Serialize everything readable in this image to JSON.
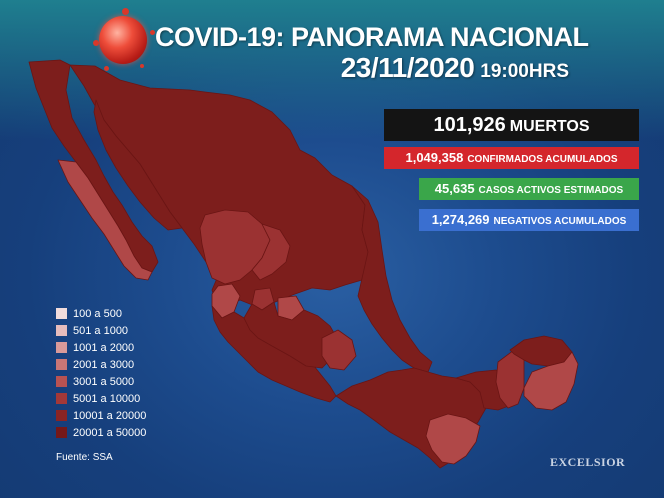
{
  "header": {
    "title": "COVID-19: PANORAMA NACIONAL",
    "date": "23/11/2020",
    "time": "19:00HRS"
  },
  "stats": {
    "deaths": {
      "value": "101,926",
      "label": "MUERTOS",
      "color": "#141414"
    },
    "confirmed": {
      "value": "1,049,358",
      "label": "CONFIRMADOS ACUMULADOS",
      "color": "#d4262c"
    },
    "active": {
      "value": "45,635",
      "label": "CASOS ACTIVOS ESTIMADOS",
      "color": "#3aa64a"
    },
    "negative": {
      "value": "1,274,269",
      "label": "NEGATIVOS ACUMULADOS",
      "color": "#3a6fd0"
    }
  },
  "legend": [
    {
      "label": "100 a 500",
      "color": "#f1dcdc"
    },
    {
      "label": "501 a 1000",
      "color": "#e6bcbc"
    },
    {
      "label": "1001 a 2000",
      "color": "#d99a9a"
    },
    {
      "label": "2001 a 3000",
      "color": "#c97676"
    },
    {
      "label": "3001 a 5000",
      "color": "#b85252"
    },
    {
      "label": "5001 a 10000",
      "color": "#a33838"
    },
    {
      "label": "10001 a 20000",
      "color": "#8a2424"
    },
    {
      "label": "20001 a 50000",
      "color": "#751818"
    }
  ],
  "map_colors": {
    "dark": "#7d1e1c",
    "medium": "#9b3232",
    "light": "#b04848"
  },
  "source": "Fuente: SSA",
  "brand": "EXCELSIOR"
}
